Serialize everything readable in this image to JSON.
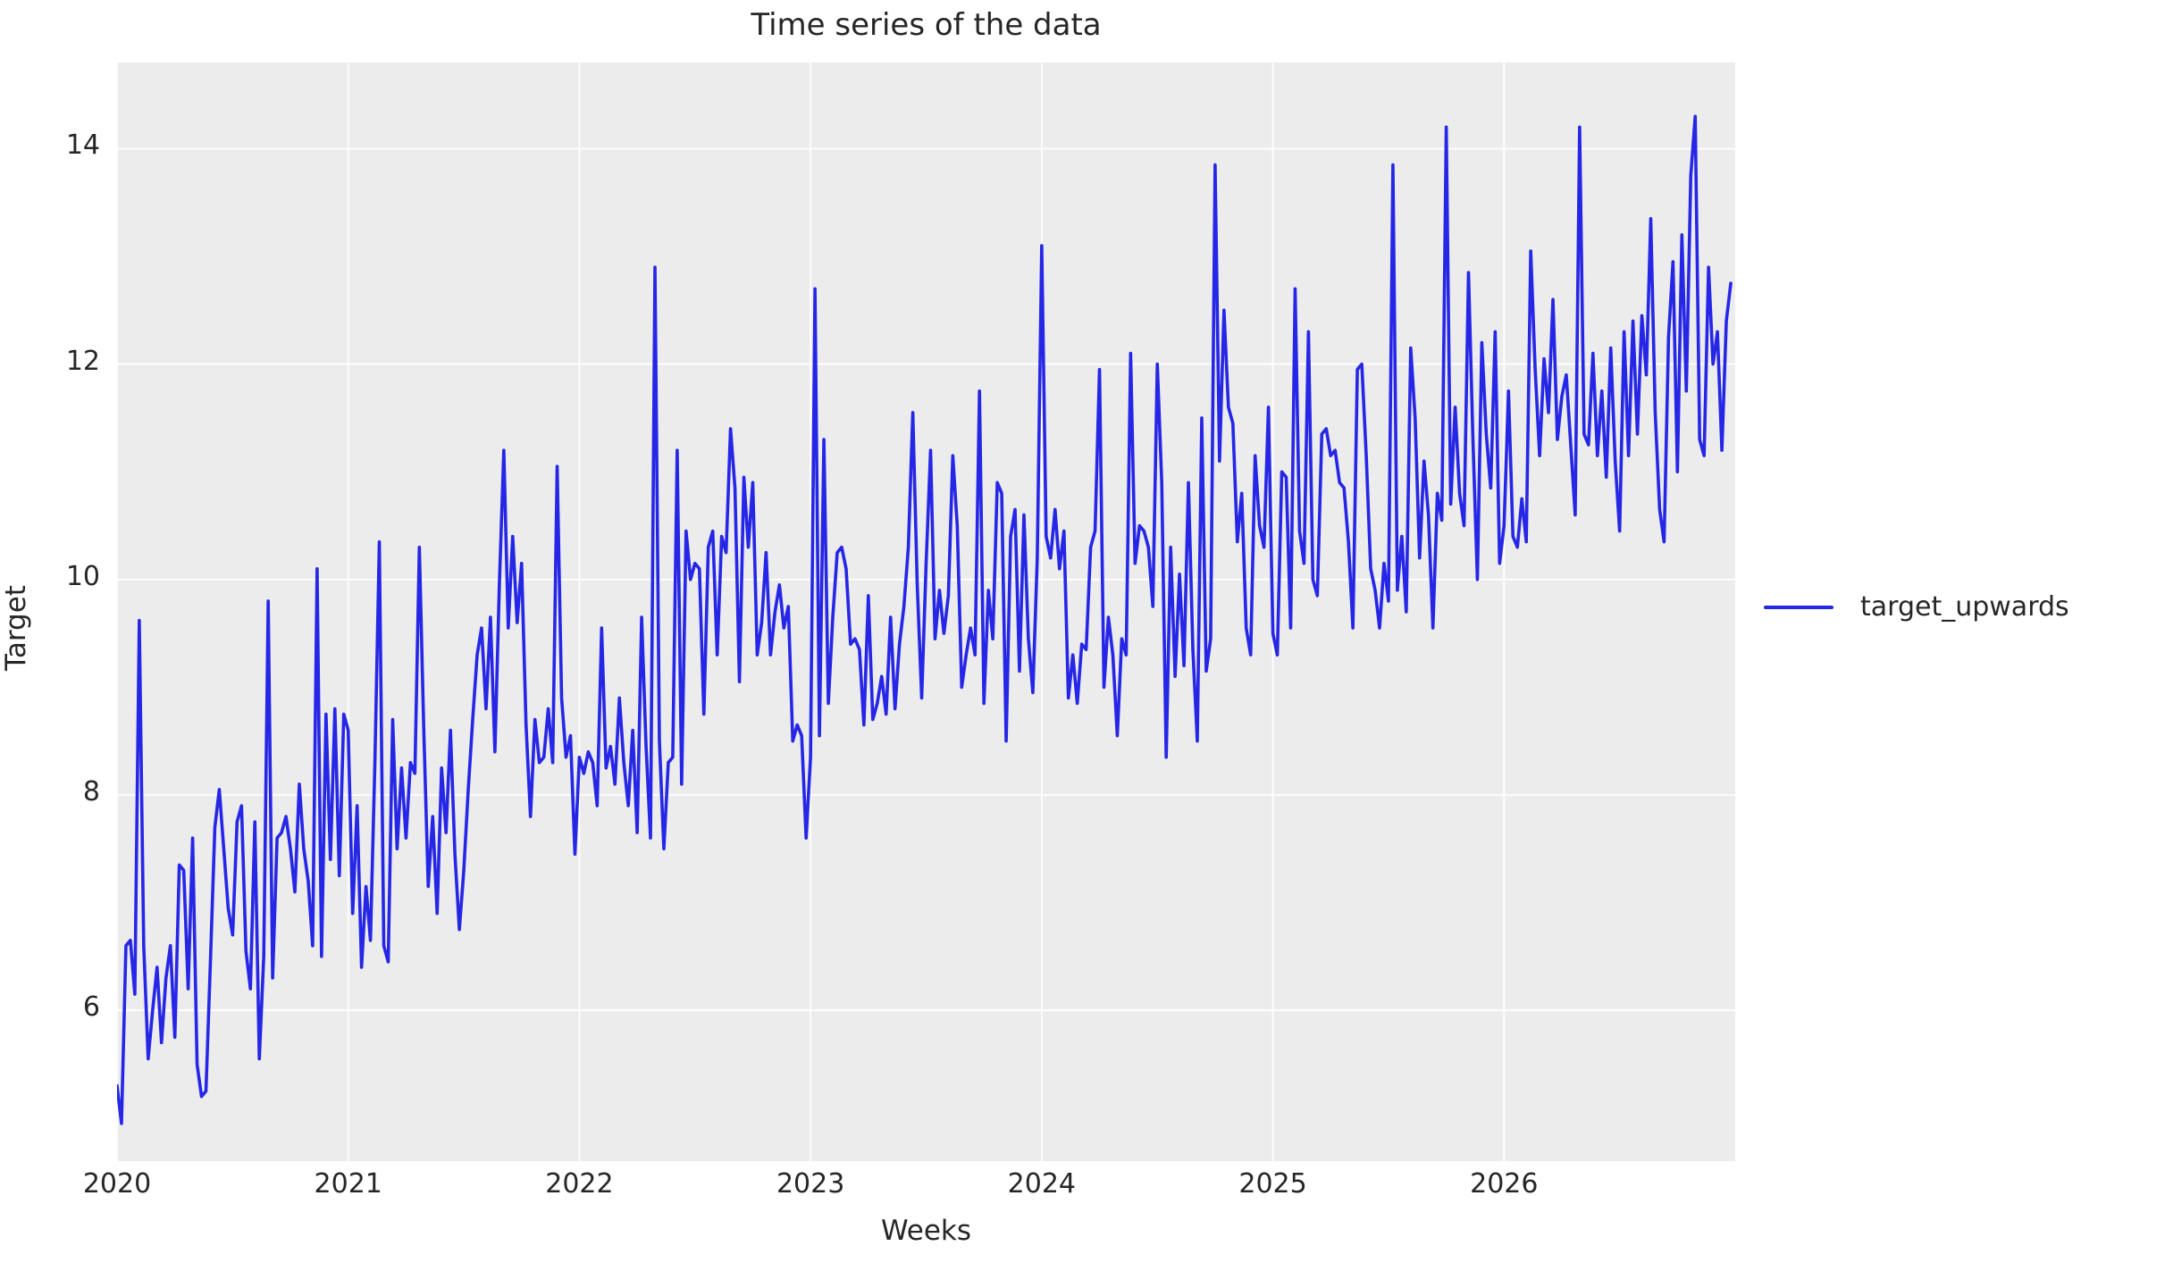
{
  "chart_data": {
    "type": "line",
    "title": "Time series of the data",
    "xlabel": "Weeks",
    "ylabel": "Target",
    "plot_bg": "#ececec",
    "grid": true,
    "grid_color": "#ffffff",
    "text_color": "#262626",
    "legend_position": "right-outside",
    "xlim": [
      2020,
      2027
    ],
    "ylim": [
      4.6,
      14.8
    ],
    "x_ticks": [
      2020,
      2021,
      2022,
      2023,
      2024,
      2025,
      2026
    ],
    "x_tick_labels": [
      "2020",
      "2021",
      "2022",
      "2023",
      "2024",
      "2025",
      "2026"
    ],
    "y_ticks": [
      6,
      8,
      10,
      12,
      14
    ],
    "y_tick_labels": [
      "6",
      "8",
      "10",
      "12",
      "14"
    ],
    "series": [
      {
        "name": "target_upwards",
        "color": "#2626e6",
        "x_start": 2020.0,
        "x_step": 0.0192308,
        "x_unit": "weekly",
        "values": [
          5.3,
          4.95,
          6.6,
          6.65,
          6.15,
          9.62,
          6.6,
          5.55,
          6.0,
          6.4,
          5.7,
          6.3,
          6.6,
          5.75,
          7.35,
          7.3,
          6.2,
          7.6,
          5.5,
          5.2,
          5.25,
          6.45,
          7.7,
          8.05,
          7.5,
          6.95,
          6.7,
          7.75,
          7.9,
          6.55,
          6.2,
          7.75,
          5.55,
          6.5,
          9.8,
          6.3,
          7.6,
          7.65,
          7.8,
          7.5,
          7.1,
          8.1,
          7.5,
          7.2,
          6.6,
          10.1,
          6.5,
          8.75,
          7.4,
          8.8,
          7.25,
          8.75,
          8.6,
          6.9,
          7.9,
          6.4,
          7.15,
          6.65,
          8.3,
          10.35,
          6.6,
          6.45,
          8.7,
          7.5,
          8.25,
          7.6,
          8.3,
          8.2,
          10.3,
          8.6,
          7.15,
          7.8,
          6.9,
          8.25,
          7.65,
          8.6,
          7.45,
          6.75,
          7.3,
          8.05,
          8.7,
          9.3,
          9.55,
          8.8,
          9.65,
          8.4,
          9.95,
          11.2,
          9.55,
          10.4,
          9.6,
          10.15,
          8.65,
          7.8,
          8.7,
          8.3,
          8.35,
          8.8,
          8.3,
          11.05,
          8.9,
          8.35,
          8.55,
          7.45,
          8.35,
          8.2,
          8.4,
          8.3,
          7.9,
          9.55,
          8.25,
          8.45,
          8.1,
          8.9,
          8.3,
          7.9,
          8.6,
          7.65,
          9.65,
          8.45,
          7.6,
          12.9,
          8.5,
          7.5,
          8.3,
          8.35,
          11.2,
          8.1,
          10.45,
          10.0,
          10.15,
          10.1,
          8.75,
          10.3,
          10.45,
          9.3,
          10.4,
          10.25,
          11.4,
          10.85,
          9.05,
          10.95,
          10.3,
          10.9,
          9.3,
          9.6,
          10.25,
          9.3,
          9.7,
          9.95,
          9.55,
          9.75,
          8.5,
          8.65,
          8.55,
          7.6,
          8.35,
          12.7,
          8.55,
          11.3,
          8.85,
          9.65,
          10.25,
          10.3,
          10.1,
          9.4,
          9.45,
          9.35,
          8.65,
          9.85,
          8.7,
          8.85,
          9.1,
          8.75,
          9.65,
          8.8,
          9.4,
          9.75,
          10.3,
          11.55,
          9.95,
          8.9,
          10.15,
          11.2,
          9.45,
          9.9,
          9.5,
          9.85,
          11.15,
          10.5,
          9.0,
          9.3,
          9.55,
          9.3,
          11.75,
          8.85,
          9.9,
          9.45,
          10.9,
          10.8,
          8.5,
          10.4,
          10.65,
          9.15,
          10.6,
          9.45,
          8.95,
          10.2,
          13.1,
          10.4,
          10.2,
          10.65,
          10.1,
          10.45,
          8.9,
          9.3,
          8.85,
          9.4,
          9.35,
          10.3,
          10.45,
          11.95,
          9.0,
          9.65,
          9.3,
          8.55,
          9.45,
          9.3,
          12.1,
          10.15,
          10.5,
          10.45,
          10.3,
          9.75,
          12.0,
          10.9,
          8.35,
          10.3,
          9.1,
          10.05,
          9.2,
          10.9,
          9.35,
          8.5,
          11.5,
          9.15,
          9.45,
          13.85,
          11.1,
          12.5,
          11.6,
          11.45,
          10.35,
          10.8,
          9.55,
          9.3,
          11.15,
          10.5,
          10.3,
          11.6,
          9.5,
          9.3,
          11.0,
          10.95,
          9.55,
          12.7,
          10.45,
          10.15,
          12.3,
          10.0,
          9.85,
          11.35,
          11.4,
          11.15,
          11.2,
          10.9,
          10.85,
          10.35,
          9.55,
          11.95,
          12.0,
          11.15,
          10.1,
          9.9,
          9.55,
          10.15,
          9.8,
          13.85,
          9.9,
          10.4,
          9.7,
          12.15,
          11.5,
          10.2,
          11.1,
          10.6,
          9.55,
          10.8,
          10.55,
          14.2,
          10.7,
          11.6,
          10.8,
          10.5,
          12.85,
          11.3,
          10.0,
          12.2,
          11.35,
          10.85,
          12.3,
          10.15,
          10.5,
          11.75,
          10.4,
          10.3,
          10.75,
          10.35,
          13.05,
          11.95,
          11.15,
          12.05,
          11.55,
          12.6,
          11.3,
          11.7,
          11.9,
          11.25,
          10.6,
          14.2,
          11.35,
          11.25,
          12.1,
          11.15,
          11.75,
          10.95,
          12.15,
          11.1,
          10.45,
          12.3,
          11.15,
          12.4,
          11.35,
          12.45,
          11.9,
          13.35,
          11.55,
          10.65,
          10.35,
          12.25,
          12.95,
          11.0,
          13.2,
          11.75,
          13.75,
          14.3,
          11.3,
          11.15,
          12.9,
          12.0,
          12.3,
          11.2,
          12.4,
          12.75
        ]
      }
    ]
  }
}
